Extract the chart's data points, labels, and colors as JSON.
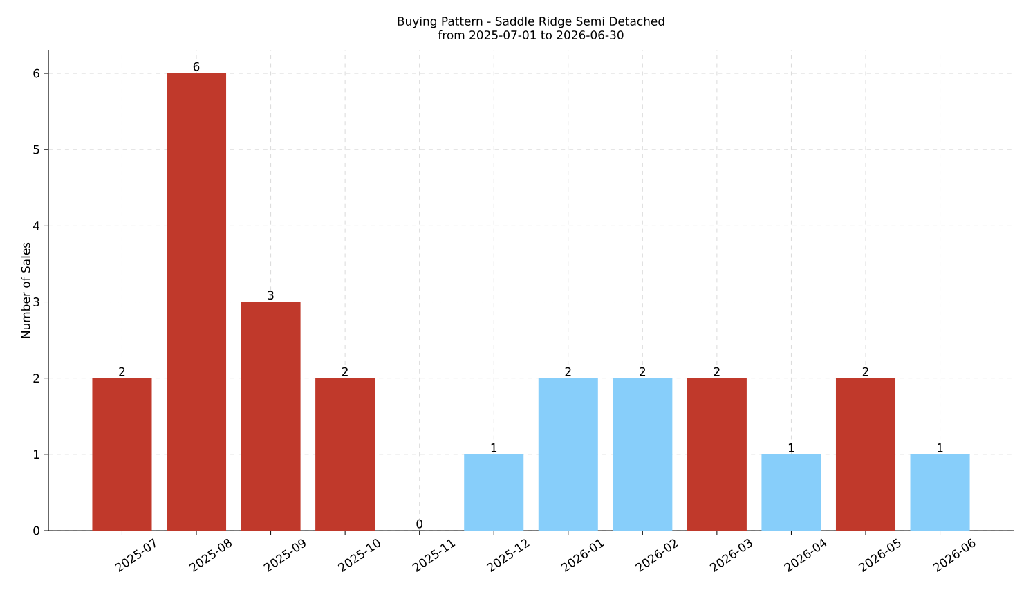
{
  "chart_data": {
    "type": "bar",
    "title": "Buying Pattern - Saddle Ridge Semi Detached",
    "subtitle": "from 2025-07-01 to 2026-06-30",
    "ylabel": "Number of Sales",
    "categories": [
      "2025-07",
      "2025-08",
      "2025-09",
      "2025-10",
      "2025-11",
      "2025-12",
      "2026-01",
      "2026-02",
      "2026-03",
      "2026-04",
      "2026-05",
      "2026-06"
    ],
    "values": [
      2,
      6,
      3,
      2,
      0,
      1,
      2,
      2,
      2,
      1,
      2,
      1
    ],
    "colors": [
      "#c0392b",
      "#c0392b",
      "#c0392b",
      "#c0392b",
      "#c0392b",
      "#87cefa",
      "#87cefa",
      "#87cefa",
      "#c0392b",
      "#87cefa",
      "#c0392b",
      "#87cefa"
    ],
    "ylim": [
      0,
      6.3
    ],
    "yticks": [
      0,
      1,
      2,
      3,
      4,
      5,
      6
    ],
    "grid": true,
    "data_labels": true
  }
}
